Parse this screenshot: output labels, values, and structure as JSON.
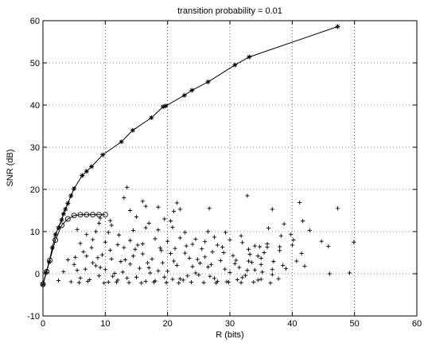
{
  "chart_data": {
    "type": "scatter",
    "title": "transition probability = 0.01",
    "xlabel": "R (bits)",
    "ylabel": "SNR (dB)",
    "xlim": [
      0,
      60
    ],
    "ylim": [
      -10,
      60
    ],
    "xticks": [
      0,
      10,
      20,
      30,
      40,
      50,
      60
    ],
    "yticks": [
      -10,
      0,
      10,
      20,
      30,
      40,
      50,
      60
    ],
    "grid": true,
    "series": [
      {
        "marker": "asterisk",
        "style": "line",
        "points": [
          [
            0,
            -2.5
          ],
          [
            0.5,
            0.3
          ],
          [
            1,
            2.8
          ],
          [
            1.5,
            6.2
          ],
          [
            2,
            9.3
          ],
          [
            2.5,
            10.9
          ],
          [
            3,
            12.8
          ],
          [
            3.3,
            14.2
          ],
          [
            3.6,
            15.3
          ],
          [
            4,
            16.7
          ],
          [
            4.5,
            18.5
          ],
          [
            5,
            20.2
          ],
          [
            6.3,
            23.3
          ],
          [
            7,
            24.3
          ],
          [
            7.8,
            25.4
          ],
          [
            9.6,
            28.2
          ],
          [
            12.6,
            31.3
          ],
          [
            14.4,
            34
          ],
          [
            17.4,
            37
          ],
          [
            19.3,
            39.6
          ],
          [
            19.7,
            39.8
          ],
          [
            22.7,
            42.3
          ],
          [
            23.9,
            43.5
          ],
          [
            26.5,
            45.5
          ],
          [
            30.8,
            49.5
          ],
          [
            33.1,
            51.4
          ],
          [
            47.3,
            58.6
          ]
        ]
      },
      {
        "marker": "circle",
        "style": "line",
        "points": [
          [
            0,
            -2.5
          ],
          [
            0.6,
            0.5
          ],
          [
            1.1,
            3.2
          ],
          [
            2,
            8
          ],
          [
            3,
            11.5
          ],
          [
            4,
            13
          ],
          [
            5,
            13.8
          ],
          [
            6,
            14
          ],
          [
            7,
            14
          ],
          [
            8,
            14
          ],
          [
            9,
            14
          ],
          [
            10,
            14
          ]
        ]
      },
      {
        "marker": "plus",
        "style": "none",
        "points": [
          [
            13,
            18
          ],
          [
            14,
            15
          ],
          [
            15,
            13.5
          ],
          [
            16.5,
            16
          ],
          [
            18.5,
            15.8
          ],
          [
            21,
            14.8
          ],
          [
            21.5,
            16.8
          ],
          [
            22,
            15.3
          ],
          [
            19.5,
            13
          ],
          [
            20.5,
            12.5
          ],
          [
            17,
            12
          ],
          [
            11,
            11.5
          ],
          [
            9,
            12
          ],
          [
            5.5,
            10.5
          ],
          [
            7,
            9.3
          ],
          [
            8.5,
            10
          ],
          [
            10.5,
            9.8
          ],
          [
            12.2,
            9.2
          ],
          [
            14.5,
            10.3
          ],
          [
            16.5,
            10.9
          ],
          [
            18.5,
            10.4
          ],
          [
            20.8,
            11
          ],
          [
            22.8,
            9.8
          ],
          [
            24.5,
            8.2
          ],
          [
            26.5,
            10
          ],
          [
            27.5,
            8.7
          ],
          [
            29.3,
            9.8
          ],
          [
            31.8,
            9
          ],
          [
            32.8,
            18.5
          ],
          [
            36.2,
            10.8
          ],
          [
            36.8,
            15.3
          ],
          [
            38.2,
            9
          ],
          [
            38.7,
            11.8
          ],
          [
            39.8,
            9.3
          ],
          [
            41.2,
            16.9
          ],
          [
            41.7,
            12.5
          ],
          [
            42.8,
            10.3
          ],
          [
            47.3,
            15.5
          ],
          [
            44.7,
            7.7
          ],
          [
            45.8,
            6.5
          ],
          [
            49.9,
            7.5
          ],
          [
            49.2,
            0.2
          ],
          [
            46,
            0
          ],
          [
            40.2,
            8
          ],
          [
            41.5,
            4.8
          ],
          [
            40.7,
            3
          ],
          [
            42,
            1.8
          ],
          [
            38.5,
            2
          ],
          [
            36.8,
            1
          ],
          [
            35,
            2.2
          ],
          [
            33,
            3
          ],
          [
            37.8,
            -1.2
          ],
          [
            36.5,
            -2.2
          ],
          [
            35,
            -1.3
          ],
          [
            34.5,
            4.2
          ],
          [
            26.7,
            15.5
          ],
          [
            16,
            17.2
          ],
          [
            13.5,
            20.5
          ],
          [
            9.2,
            13.2
          ],
          [
            10.8,
            12.6
          ],
          [
            3.3,
            0.5
          ],
          [
            2.5,
            -1.6
          ],
          [
            5,
            2.2
          ],
          [
            6,
            -1
          ],
          [
            7,
            4.2
          ],
          [
            8,
            2.6
          ],
          [
            9,
            -0.5
          ],
          [
            10,
            1
          ],
          [
            11,
            3.5
          ],
          [
            12,
            -1.5
          ],
          [
            13,
            6.2
          ],
          [
            14,
            2.3
          ],
          [
            15,
            -0.8
          ],
          [
            16,
            4.7
          ],
          [
            17,
            1.4
          ],
          [
            18,
            -1.7
          ],
          [
            19,
            5.5
          ],
          [
            20,
            0.6
          ],
          [
            21,
            3
          ],
          [
            22,
            -1.2
          ],
          [
            23,
            6.6
          ],
          [
            24,
            1.7
          ],
          [
            25,
            -0.3
          ],
          [
            26,
            4
          ],
          [
            27,
            2.2
          ],
          [
            28,
            -1.8
          ],
          [
            29,
            5
          ],
          [
            30,
            0.3
          ],
          [
            31,
            3.2
          ],
          [
            32,
            -0.9
          ],
          [
            33,
            5.8
          ],
          [
            34,
            0.9
          ],
          [
            35,
            3.7
          ],
          [
            36,
            6.3
          ],
          [
            37,
            2.9
          ],
          [
            38,
            5.5
          ],
          [
            39,
            1.2
          ],
          [
            40,
            6.8
          ],
          [
            4.5,
            -1.9
          ],
          [
            5.5,
            0.8
          ],
          [
            6.5,
            5.2
          ],
          [
            7.5,
            -1.4
          ],
          [
            8.5,
            1.9
          ],
          [
            9.5,
            4.5
          ],
          [
            10.5,
            -2
          ],
          [
            11.5,
            0.1
          ],
          [
            12.5,
            2.9
          ],
          [
            13.5,
            -1
          ],
          [
            14.5,
            4.2
          ],
          [
            15.5,
            1.3
          ],
          [
            16.5,
            -1.8
          ],
          [
            17.5,
            3.5
          ],
          [
            18.5,
            0.7
          ],
          [
            19.5,
            -0.8
          ],
          [
            20.5,
            4.8
          ],
          [
            21.5,
            2
          ],
          [
            22.5,
            -1.5
          ],
          [
            23.5,
            3.7
          ],
          [
            24.5,
            0.2
          ],
          [
            25.5,
            5.9
          ],
          [
            26.5,
            1.6
          ],
          [
            27.5,
            -1.1
          ],
          [
            28.5,
            3.1
          ],
          [
            29.5,
            -1.9
          ],
          [
            30.5,
            4.3
          ],
          [
            31.5,
            1.5
          ],
          [
            32.5,
            -0.4
          ],
          [
            33.5,
            2.7
          ],
          [
            34.5,
            -1.5
          ],
          [
            35.5,
            5
          ],
          [
            4,
            3.3
          ],
          [
            6,
            7.2
          ],
          [
            8,
            8.1
          ],
          [
            10,
            7.5
          ],
          [
            12,
            6.9
          ],
          [
            14,
            7.9
          ],
          [
            16,
            7.1
          ],
          [
            18,
            8.3
          ],
          [
            20,
            7.7
          ],
          [
            22,
            8.5
          ],
          [
            24,
            7
          ],
          [
            26,
            7.6
          ],
          [
            28,
            6.8
          ],
          [
            30,
            8
          ],
          [
            32,
            7.4
          ],
          [
            34,
            6.6
          ],
          [
            36,
            7.1
          ],
          [
            38,
            6.4
          ],
          [
            5.8,
            -2.1
          ],
          [
            7.2,
            -1.8
          ],
          [
            9.8,
            -2.2
          ],
          [
            11.8,
            -2
          ],
          [
            13.8,
            -2.1
          ],
          [
            15.8,
            -2.2
          ],
          [
            17.8,
            -2
          ],
          [
            19.8,
            -2.1
          ],
          [
            21.8,
            -2.2
          ],
          [
            23.8,
            -2
          ],
          [
            25.8,
            -2.1
          ],
          [
            27.8,
            -2.2
          ],
          [
            29.8,
            -2
          ],
          [
            31.8,
            -2.1
          ],
          [
            33.8,
            -2
          ],
          [
            6.8,
            1.1
          ],
          [
            8.8,
            3.8
          ],
          [
            10.8,
            5.6
          ],
          [
            12.8,
            0.4
          ],
          [
            14.8,
            5.8
          ],
          [
            16.8,
            2.6
          ],
          [
            18.8,
            6.1
          ],
          [
            20.8,
            -1.3
          ],
          [
            22.8,
            4.9
          ],
          [
            24.8,
            3.4
          ],
          [
            26.8,
            -0.6
          ],
          [
            28.8,
            6.3
          ],
          [
            30.8,
            2.4
          ],
          [
            32.8,
            0.8
          ],
          [
            34.8,
            6.4
          ],
          [
            36.8,
            -0.2
          ],
          [
            5.2,
            3.9
          ],
          [
            7.8,
            6.2
          ],
          [
            9.2,
            1.5
          ],
          [
            11.2,
            -0.6
          ],
          [
            13.2,
            3.3
          ],
          [
            15.2,
            6.8
          ],
          [
            17.2,
            0.2
          ],
          [
            19.2,
            2.6
          ],
          [
            21.2,
            6
          ],
          [
            23.2,
            -0.5
          ],
          [
            25.2,
            2.5
          ],
          [
            27.2,
            5.2
          ],
          [
            29.2,
            1.1
          ],
          [
            31.2,
            -1.4
          ],
          [
            33.2,
            4.6
          ],
          [
            35.2,
            0.4
          ]
        ]
      }
    ]
  }
}
